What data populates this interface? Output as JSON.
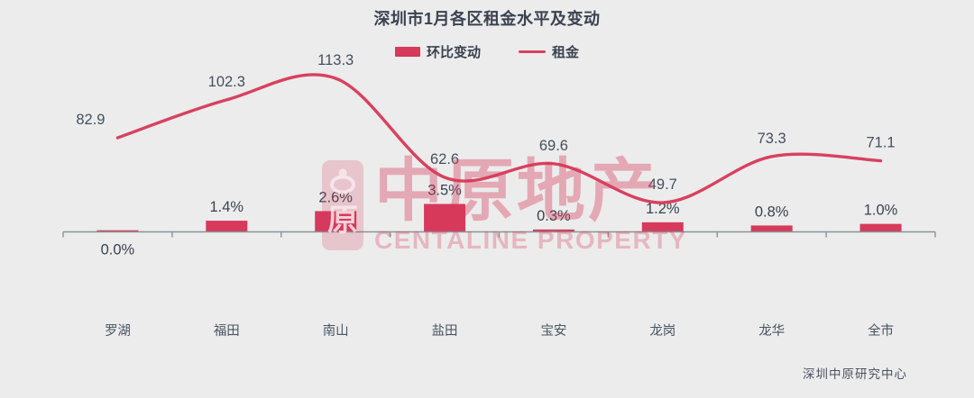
{
  "title": "深圳市1月各区租金水平及变动",
  "legend": {
    "items": [
      {
        "label": "环比变动",
        "type": "bar"
      },
      {
        "label": "租金",
        "type": "line"
      }
    ]
  },
  "watermark": {
    "cn": "中原地产",
    "en": "CENTALINE PROPERTY",
    "logo_glyph": "原"
  },
  "footer": "深圳中原研究中心",
  "colors": {
    "background": "#ececec",
    "accent_bar": "#d7395b",
    "accent_line": "#d8415f",
    "axis": "#8e9297",
    "text_dark": "#3a4250",
    "text_label": "#4a5563",
    "watermark": "#d53a5a"
  },
  "chart_data": {
    "type": "combo-bar-line",
    "title": "深圳市1月各区租金水平及变动",
    "categories": [
      "罗湖",
      "福田",
      "南山",
      "盐田",
      "宝安",
      "龙岗",
      "龙华",
      "全市"
    ],
    "series": [
      {
        "name": "环比变动",
        "type": "bar",
        "unit": "%",
        "values": [
          0.0,
          1.4,
          2.6,
          3.5,
          0.3,
          1.2,
          0.8,
          1.0
        ],
        "labels": [
          "0.0%",
          "1.4%",
          "2.6%",
          "3.5%",
          "0.3%",
          "1.2%",
          "0.8%",
          "1.0%"
        ]
      },
      {
        "name": "租金",
        "type": "line",
        "values": [
          82.9,
          102.3,
          113.3,
          62.6,
          69.6,
          49.7,
          73.3,
          71.1
        ],
        "labels": [
          "82.9",
          "102.3",
          "113.3",
          "62.6",
          "69.6",
          "49.7",
          "73.3",
          "71.1"
        ]
      }
    ],
    "legend_position": "top",
    "grid": false,
    "value_labels_shown": true,
    "x_axis_shown": true,
    "y_axis_shown": false
  }
}
